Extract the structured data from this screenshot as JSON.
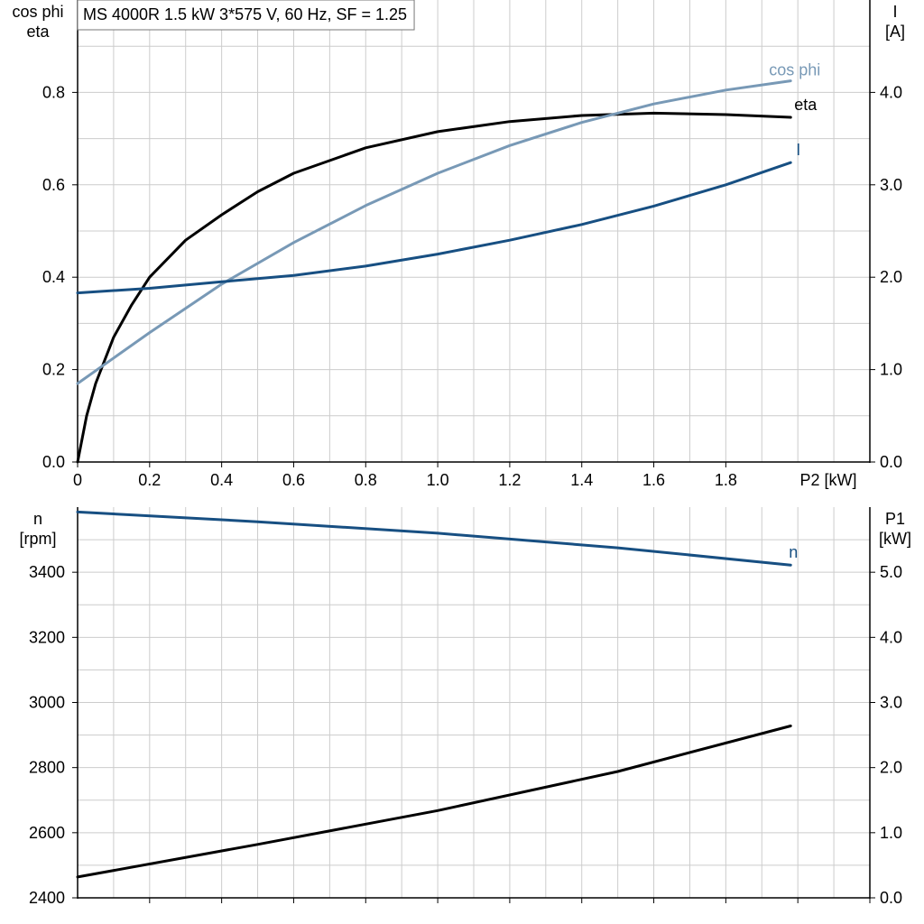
{
  "chart_data": [
    {
      "type": "line",
      "title": "MS 4000R   1.5 kW   3*575 V, 60 Hz, SF = 1.25",
      "xlabel": "P2 [kW]",
      "x_ticks": [
        "0",
        "0.2",
        "0.4",
        "0.6",
        "0.8",
        "1.0",
        "1.2",
        "1.4",
        "1.6",
        "1.8"
      ],
      "xlim": [
        0,
        2.2
      ],
      "y_left": {
        "label_lines": [
          "cos phi",
          "eta"
        ],
        "ticks": [
          "0.0",
          "0.2",
          "0.4",
          "0.6",
          "0.8"
        ],
        "lim": [
          0,
          1.0
        ]
      },
      "y_right": {
        "label_lines": [
          "I",
          "[A]"
        ],
        "ticks": [
          "0.0",
          "1.0",
          "2.0",
          "3.0",
          "4.0"
        ],
        "lim": [
          0,
          5.0
        ]
      },
      "grid": true,
      "series": [
        {
          "name": "eta",
          "axis": "left",
          "color": "#000000",
          "x": [
            0,
            0.025,
            0.05,
            0.1,
            0.15,
            0.2,
            0.3,
            0.4,
            0.5,
            0.6,
            0.8,
            1.0,
            1.2,
            1.4,
            1.6,
            1.8,
            1.98
          ],
          "y": [
            0.0,
            0.1,
            0.17,
            0.27,
            0.34,
            0.4,
            0.48,
            0.535,
            0.585,
            0.625,
            0.68,
            0.715,
            0.737,
            0.75,
            0.755,
            0.752,
            0.746
          ]
        },
        {
          "name": "cos phi",
          "axis": "left",
          "color": "#7899b6",
          "x": [
            0,
            0.1,
            0.2,
            0.4,
            0.6,
            0.8,
            1.0,
            1.2,
            1.4,
            1.6,
            1.8,
            1.98
          ],
          "y": [
            0.17,
            0.225,
            0.28,
            0.385,
            0.475,
            0.555,
            0.625,
            0.685,
            0.735,
            0.775,
            0.805,
            0.825
          ]
        },
        {
          "name": "I",
          "axis": "right",
          "color": "#174f82",
          "x": [
            0,
            0.2,
            0.4,
            0.6,
            0.8,
            1.0,
            1.2,
            1.4,
            1.6,
            1.8,
            1.98
          ],
          "y": [
            1.83,
            1.88,
            1.95,
            2.02,
            2.12,
            2.25,
            2.4,
            2.57,
            2.77,
            3.0,
            3.24
          ]
        }
      ]
    },
    {
      "type": "line",
      "x_ticks": [],
      "xlim": [
        0,
        2.2
      ],
      "y_left": {
        "label_lines": [
          "n",
          "[rpm]"
        ],
        "ticks": [
          "2400",
          "2600",
          "2800",
          "3000",
          "3200",
          "3400"
        ],
        "lim": [
          2400,
          3600
        ]
      },
      "y_right": {
        "label_lines": [
          "P1",
          "[kW]"
        ],
        "ticks": [
          "0.0",
          "1.0",
          "2.0",
          "3.0",
          "4.0",
          "5.0"
        ],
        "lim": [
          0,
          6.0
        ]
      },
      "grid": true,
      "series": [
        {
          "name": "n",
          "axis": "left",
          "color": "#174f82",
          "x": [
            0,
            0.5,
            1.0,
            1.5,
            1.98
          ],
          "y": [
            3585,
            3555,
            3520,
            3475,
            3422
          ]
        },
        {
          "axis": "right",
          "color": "#000000",
          "x": [
            0,
            0.5,
            1.0,
            1.5,
            1.98
          ],
          "y": [
            0.32,
            0.82,
            1.34,
            1.94,
            2.64
          ]
        }
      ]
    }
  ]
}
